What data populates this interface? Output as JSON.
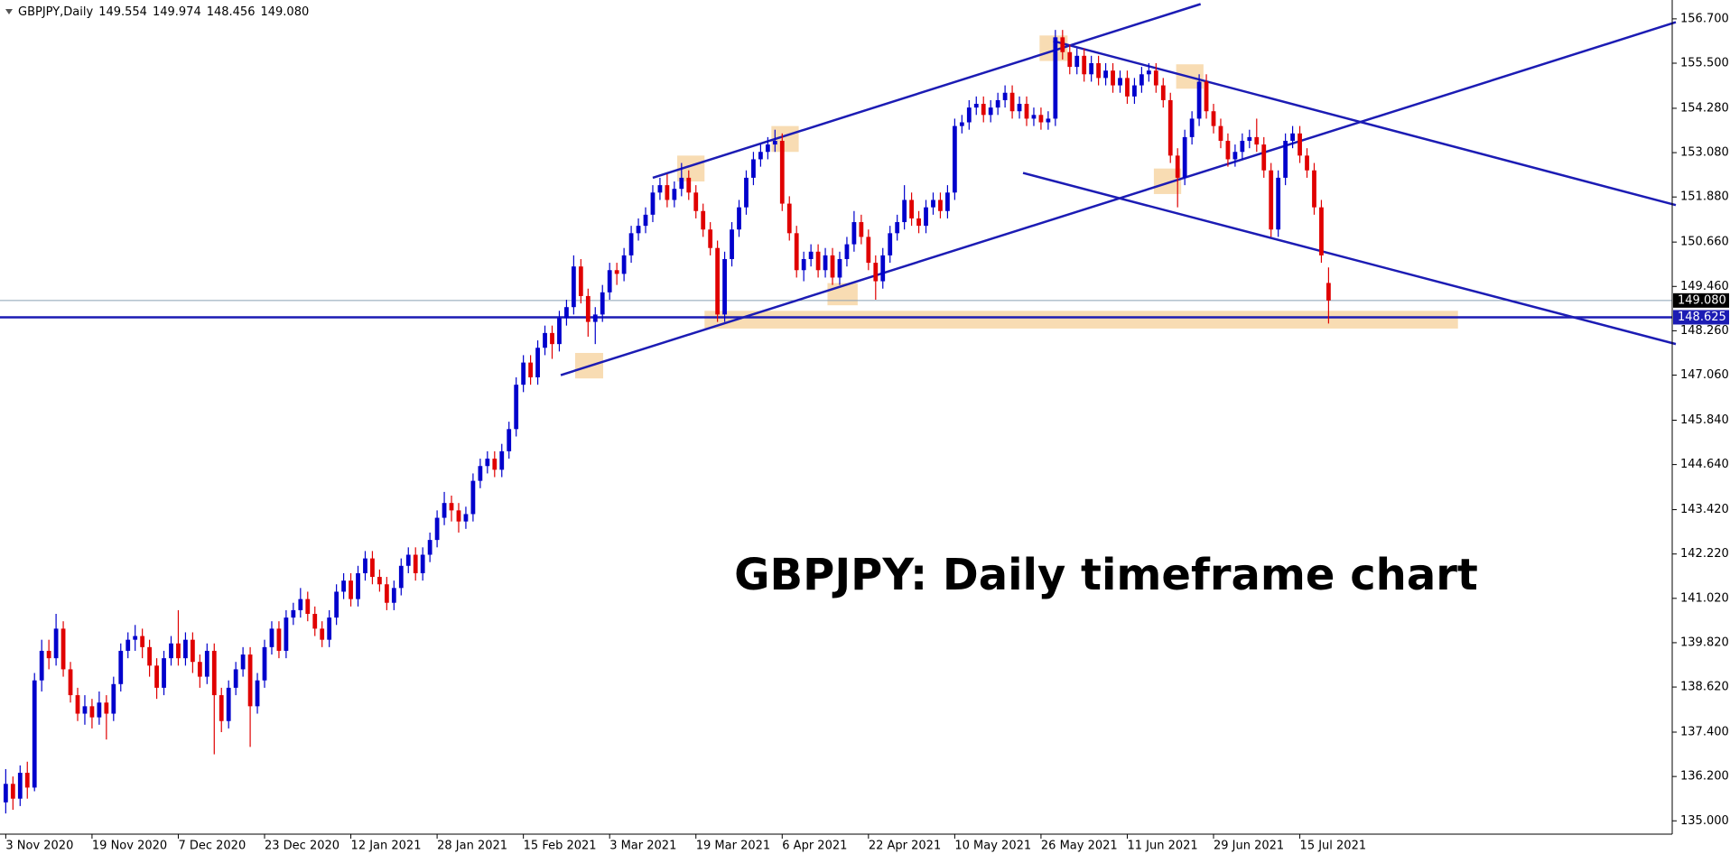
{
  "chart_data": {
    "type": "candlestick",
    "symbol": "GBPJPY,Daily",
    "ohlc_labels": [
      "149.554",
      "149.974",
      "148.456",
      "149.080"
    ],
    "annotation": "GBPJPY: Daily timeframe chart",
    "up_color": "#0000cc",
    "down_color": "#e00000",
    "line_color": "#1c1cb4",
    "zone_color": "#f7d6a6",
    "grid": false,
    "ylim": [
      134.64,
      157.21
    ],
    "xlim": [
      -0.8,
      231.8
    ],
    "yticks": [
      {
        "value": 135,
        "label": "135.000"
      },
      {
        "value": 136.2,
        "label": "136.200"
      },
      {
        "value": 137.4,
        "label": "137.400"
      },
      {
        "value": 138.62,
        "label": "138.620"
      },
      {
        "value": 139.82,
        "label": "139.820"
      },
      {
        "value": 141.02,
        "label": "141.020"
      },
      {
        "value": 142.22,
        "label": "142.220"
      },
      {
        "value": 143.42,
        "label": "143.420"
      },
      {
        "value": 144.64,
        "label": "144.640"
      },
      {
        "value": 145.84,
        "label": "145.840"
      },
      {
        "value": 147.06,
        "label": "147.060"
      },
      {
        "value": 148.26,
        "label": "148.260"
      },
      {
        "value": 149.46,
        "label": "149.460"
      },
      {
        "value": 150.66,
        "label": "150.660"
      },
      {
        "value": 151.88,
        "label": "151.880"
      },
      {
        "value": 153.08,
        "label": "153.080"
      },
      {
        "value": 154.28,
        "label": "154.280"
      },
      {
        "value": 155.5,
        "label": "155.500"
      },
      {
        "value": 156.7,
        "label": "156.700"
      }
    ],
    "price_line": {
      "value": 149.08,
      "label": "149.080"
    },
    "level": {
      "value": 148.625,
      "label": "148.625"
    },
    "categories": [
      "3 Nov 2020",
      null,
      null,
      null,
      null,
      null,
      null,
      null,
      null,
      null,
      null,
      null,
      "19 Nov 2020",
      null,
      null,
      null,
      null,
      null,
      null,
      null,
      null,
      null,
      null,
      null,
      "7 Dec 2020",
      null,
      null,
      null,
      null,
      null,
      null,
      null,
      null,
      null,
      null,
      null,
      "23 Dec 2020",
      null,
      null,
      null,
      null,
      null,
      null,
      null,
      null,
      null,
      null,
      null,
      "12 Jan 2021",
      null,
      null,
      null,
      null,
      null,
      null,
      null,
      null,
      null,
      null,
      null,
      "28 Jan 2021",
      null,
      null,
      null,
      null,
      null,
      null,
      null,
      null,
      null,
      null,
      null,
      "15 Feb 2021",
      null,
      null,
      null,
      null,
      null,
      null,
      null,
      null,
      null,
      null,
      null,
      "3 Mar 2021",
      null,
      null,
      null,
      null,
      null,
      null,
      null,
      null,
      null,
      null,
      null,
      "19 Mar 2021",
      null,
      null,
      null,
      null,
      null,
      null,
      null,
      null,
      null,
      null,
      null,
      "6 Apr 2021",
      null,
      null,
      null,
      null,
      null,
      null,
      null,
      null,
      null,
      null,
      null,
      "22 Apr 2021",
      null,
      null,
      null,
      null,
      null,
      null,
      null,
      null,
      null,
      null,
      null,
      "10 May 2021",
      null,
      null,
      null,
      null,
      null,
      null,
      null,
      null,
      null,
      null,
      null,
      "26 May 2021",
      null,
      null,
      null,
      null,
      null,
      null,
      null,
      null,
      null,
      null,
      null,
      "11 Jun 2021",
      null,
      null,
      null,
      null,
      null,
      null,
      null,
      null,
      null,
      null,
      null,
      "29 Jun 2021",
      null,
      null,
      null,
      null,
      null,
      null,
      null,
      null,
      null,
      null,
      null,
      "15 Jul 2021",
      null,
      null,
      null,
      null
    ],
    "ohlc": [
      [
        135.5,
        136.4,
        135.2,
        136.0
      ],
      [
        136.0,
        136.2,
        135.3,
        135.6
      ],
      [
        135.6,
        136.5,
        135.4,
        136.3
      ],
      [
        136.3,
        136.6,
        135.6,
        135.9
      ],
      [
        135.9,
        139.0,
        135.8,
        138.8
      ],
      [
        138.8,
        139.9,
        138.5,
        139.6
      ],
      [
        139.6,
        139.9,
        139.1,
        139.4
      ],
      [
        139.4,
        140.6,
        139.2,
        140.2
      ],
      [
        140.2,
        140.4,
        138.9,
        139.1
      ],
      [
        139.1,
        139.3,
        138.2,
        138.4
      ],
      [
        138.4,
        138.6,
        137.7,
        137.9
      ],
      [
        137.9,
        138.4,
        137.6,
        138.1
      ],
      [
        138.1,
        138.3,
        137.5,
        137.8
      ],
      [
        137.8,
        138.5,
        137.6,
        138.2
      ],
      [
        138.2,
        138.4,
        137.2,
        137.9
      ],
      [
        137.9,
        138.9,
        137.7,
        138.7
      ],
      [
        138.7,
        139.8,
        138.5,
        139.6
      ],
      [
        139.6,
        140.1,
        139.4,
        139.9
      ],
      [
        139.9,
        140.3,
        139.6,
        140.0
      ],
      [
        140.0,
        140.2,
        139.4,
        139.7
      ],
      [
        139.7,
        139.9,
        138.9,
        139.2
      ],
      [
        139.2,
        139.4,
        138.3,
        138.6
      ],
      [
        138.6,
        139.6,
        138.4,
        139.4
      ],
      [
        139.4,
        140.0,
        139.2,
        139.8
      ],
      [
        139.8,
        140.7,
        139.2,
        139.4
      ],
      [
        139.4,
        140.1,
        139.2,
        139.9
      ],
      [
        139.9,
        140.1,
        139.0,
        139.3
      ],
      [
        139.3,
        139.5,
        138.6,
        138.9
      ],
      [
        138.9,
        139.8,
        138.7,
        139.6
      ],
      [
        139.6,
        139.8,
        136.8,
        138.4
      ],
      [
        138.4,
        138.6,
        137.4,
        137.7
      ],
      [
        137.7,
        138.8,
        137.5,
        138.6
      ],
      [
        138.6,
        139.3,
        138.4,
        139.1
      ],
      [
        139.1,
        139.7,
        138.9,
        139.5
      ],
      [
        139.5,
        139.7,
        137.0,
        138.1
      ],
      [
        138.1,
        139.0,
        137.9,
        138.8
      ],
      [
        138.8,
        139.9,
        138.6,
        139.7
      ],
      [
        139.7,
        140.4,
        139.5,
        140.2
      ],
      [
        140.2,
        140.4,
        139.4,
        139.6
      ],
      [
        139.6,
        140.7,
        139.4,
        140.5
      ],
      [
        140.5,
        140.9,
        140.3,
        140.7
      ],
      [
        140.7,
        141.3,
        140.5,
        141.0
      ],
      [
        141.0,
        141.2,
        140.4,
        140.6
      ],
      [
        140.6,
        140.8,
        140.0,
        140.2
      ],
      [
        140.2,
        140.4,
        139.7,
        139.9
      ],
      [
        139.9,
        140.7,
        139.7,
        140.5
      ],
      [
        140.5,
        141.4,
        140.3,
        141.2
      ],
      [
        141.2,
        141.7,
        141.0,
        141.5
      ],
      [
        141.5,
        141.7,
        140.8,
        141.0
      ],
      [
        141.0,
        141.9,
        140.8,
        141.7
      ],
      [
        141.7,
        142.3,
        141.5,
        142.1
      ],
      [
        142.1,
        142.3,
        141.4,
        141.6
      ],
      [
        141.6,
        141.8,
        141.2,
        141.4
      ],
      [
        141.4,
        141.6,
        140.7,
        140.9
      ],
      [
        140.9,
        141.5,
        140.7,
        141.3
      ],
      [
        141.3,
        142.1,
        141.1,
        141.9
      ],
      [
        141.9,
        142.4,
        141.7,
        142.2
      ],
      [
        142.2,
        142.4,
        141.5,
        141.7
      ],
      [
        141.7,
        142.4,
        141.5,
        142.2
      ],
      [
        142.2,
        142.8,
        142.0,
        142.6
      ],
      [
        142.6,
        143.4,
        142.4,
        143.2
      ],
      [
        143.2,
        143.9,
        143.0,
        143.6
      ],
      [
        143.6,
        143.8,
        143.1,
        143.4
      ],
      [
        143.4,
        143.6,
        142.8,
        143.1
      ],
      [
        143.1,
        143.5,
        142.9,
        143.3
      ],
      [
        143.3,
        144.4,
        143.1,
        144.2
      ],
      [
        144.2,
        144.8,
        144.0,
        144.6
      ],
      [
        144.6,
        145.0,
        144.4,
        144.8
      ],
      [
        144.8,
        145.0,
        144.3,
        144.5
      ],
      [
        144.5,
        145.2,
        144.3,
        145.0
      ],
      [
        145.0,
        145.8,
        144.8,
        145.6
      ],
      [
        145.6,
        147.0,
        145.4,
        146.8
      ],
      [
        146.8,
        147.6,
        146.6,
        147.4
      ],
      [
        147.4,
        147.6,
        146.8,
        147.0
      ],
      [
        147.0,
        148.0,
        146.8,
        147.8
      ],
      [
        147.8,
        148.4,
        147.6,
        148.2
      ],
      [
        148.2,
        148.4,
        147.5,
        147.9
      ],
      [
        147.9,
        148.8,
        147.7,
        148.6
      ],
      [
        148.6,
        149.1,
        148.4,
        148.9
      ],
      [
        148.9,
        150.3,
        148.7,
        150.0
      ],
      [
        150.0,
        150.2,
        149.0,
        149.2
      ],
      [
        149.2,
        149.4,
        148.1,
        148.5
      ],
      [
        148.5,
        148.9,
        147.9,
        148.7
      ],
      [
        148.7,
        149.5,
        148.5,
        149.3
      ],
      [
        149.3,
        150.1,
        149.1,
        149.9
      ],
      [
        149.9,
        150.1,
        149.5,
        149.8
      ],
      [
        149.8,
        150.5,
        149.6,
        150.3
      ],
      [
        150.3,
        151.1,
        150.1,
        150.9
      ],
      [
        150.9,
        151.3,
        150.7,
        151.1
      ],
      [
        151.1,
        151.6,
        150.9,
        151.4
      ],
      [
        151.4,
        152.2,
        151.2,
        152.0
      ],
      [
        152.0,
        152.4,
        151.8,
        152.2
      ],
      [
        152.2,
        152.5,
        151.6,
        151.8
      ],
      [
        151.8,
        152.3,
        151.6,
        152.1
      ],
      [
        152.1,
        152.8,
        151.9,
        152.4
      ],
      [
        152.4,
        152.6,
        151.8,
        152.0
      ],
      [
        152.0,
        152.2,
        151.3,
        151.5
      ],
      [
        151.5,
        151.7,
        150.8,
        151.0
      ],
      [
        151.0,
        151.2,
        150.3,
        150.5
      ],
      [
        150.5,
        150.7,
        148.5,
        148.7
      ],
      [
        148.7,
        150.4,
        148.5,
        150.2
      ],
      [
        150.2,
        151.2,
        150.0,
        151.0
      ],
      [
        151.0,
        151.8,
        150.8,
        151.6
      ],
      [
        151.6,
        152.6,
        151.4,
        152.4
      ],
      [
        152.4,
        153.1,
        152.2,
        152.9
      ],
      [
        152.9,
        153.3,
        152.7,
        153.1
      ],
      [
        153.1,
        153.5,
        152.9,
        153.3
      ],
      [
        153.3,
        153.7,
        153.1,
        153.4
      ],
      [
        153.4,
        153.6,
        151.5,
        151.7
      ],
      [
        151.7,
        151.9,
        150.7,
        150.9
      ],
      [
        150.9,
        151.1,
        149.7,
        149.9
      ],
      [
        149.9,
        150.4,
        149.6,
        150.2
      ],
      [
        150.2,
        150.6,
        150.0,
        150.4
      ],
      [
        150.4,
        150.6,
        149.7,
        149.9
      ],
      [
        149.9,
        150.5,
        149.7,
        150.3
      ],
      [
        150.3,
        150.5,
        149.5,
        149.7
      ],
      [
        149.7,
        150.4,
        149.5,
        150.2
      ],
      [
        150.2,
        150.8,
        150.0,
        150.6
      ],
      [
        150.6,
        151.5,
        150.4,
        151.2
      ],
      [
        151.2,
        151.4,
        150.6,
        150.8
      ],
      [
        150.8,
        151.0,
        149.9,
        150.1
      ],
      [
        150.1,
        150.3,
        149.1,
        149.6
      ],
      [
        149.6,
        150.5,
        149.4,
        150.3
      ],
      [
        150.3,
        151.1,
        150.1,
        150.9
      ],
      [
        150.9,
        151.4,
        150.7,
        151.2
      ],
      [
        151.2,
        152.2,
        151.0,
        151.8
      ],
      [
        151.8,
        152.0,
        151.1,
        151.3
      ],
      [
        151.3,
        151.5,
        150.9,
        151.1
      ],
      [
        151.1,
        151.8,
        150.9,
        151.6
      ],
      [
        151.6,
        152.0,
        151.4,
        151.8
      ],
      [
        151.8,
        152.0,
        151.3,
        151.5
      ],
      [
        151.5,
        152.2,
        151.3,
        152.0
      ],
      [
        152.0,
        154.0,
        151.8,
        153.8
      ],
      [
        153.8,
        154.1,
        153.6,
        153.9
      ],
      [
        153.9,
        154.5,
        153.7,
        154.3
      ],
      [
        154.3,
        154.6,
        154.1,
        154.4
      ],
      [
        154.4,
        154.6,
        153.9,
        154.1
      ],
      [
        154.1,
        154.5,
        153.9,
        154.3
      ],
      [
        154.3,
        154.7,
        154.1,
        154.5
      ],
      [
        154.5,
        154.9,
        154.3,
        154.7
      ],
      [
        154.7,
        154.9,
        154.0,
        154.2
      ],
      [
        154.2,
        154.6,
        154.0,
        154.4
      ],
      [
        154.4,
        154.6,
        153.8,
        154.0
      ],
      [
        154.0,
        154.3,
        153.8,
        154.1
      ],
      [
        154.1,
        154.3,
        153.7,
        153.9
      ],
      [
        153.9,
        154.2,
        153.7,
        154.0
      ],
      [
        154.0,
        156.4,
        153.8,
        156.2
      ],
      [
        156.2,
        156.4,
        155.6,
        155.8
      ],
      [
        155.8,
        156.0,
        155.2,
        155.4
      ],
      [
        155.4,
        155.9,
        155.2,
        155.7
      ],
      [
        155.7,
        155.9,
        155.0,
        155.2
      ],
      [
        155.2,
        155.7,
        155.0,
        155.5
      ],
      [
        155.5,
        155.7,
        154.9,
        155.1
      ],
      [
        155.1,
        155.5,
        154.9,
        155.3
      ],
      [
        155.3,
        155.5,
        154.7,
        154.9
      ],
      [
        154.9,
        155.3,
        154.7,
        155.1
      ],
      [
        155.1,
        155.3,
        154.4,
        154.6
      ],
      [
        154.6,
        155.1,
        154.4,
        154.9
      ],
      [
        154.9,
        155.4,
        154.7,
        155.2
      ],
      [
        155.2,
        155.5,
        155.0,
        155.3
      ],
      [
        155.3,
        155.5,
        154.7,
        154.9
      ],
      [
        154.9,
        155.1,
        154.3,
        154.5
      ],
      [
        154.5,
        154.7,
        152.8,
        153.0
      ],
      [
        153.0,
        153.2,
        151.6,
        152.4
      ],
      [
        152.4,
        153.7,
        152.2,
        153.5
      ],
      [
        153.5,
        154.2,
        153.3,
        154.0
      ],
      [
        154.0,
        155.2,
        153.8,
        155.0
      ],
      [
        155.0,
        155.2,
        154.0,
        154.2
      ],
      [
        154.2,
        154.4,
        153.6,
        153.8
      ],
      [
        153.8,
        154.0,
        153.2,
        153.4
      ],
      [
        153.4,
        153.6,
        152.7,
        152.9
      ],
      [
        152.9,
        153.3,
        152.7,
        153.1
      ],
      [
        153.1,
        153.6,
        152.9,
        153.4
      ],
      [
        153.4,
        153.7,
        153.2,
        153.5
      ],
      [
        153.5,
        154.0,
        153.1,
        153.3
      ],
      [
        153.3,
        153.5,
        152.4,
        152.6
      ],
      [
        152.6,
        152.8,
        150.8,
        151.0
      ],
      [
        151.0,
        152.6,
        150.8,
        152.4
      ],
      [
        152.4,
        153.6,
        152.2,
        153.4
      ],
      [
        153.4,
        153.8,
        153.2,
        153.6
      ],
      [
        153.6,
        153.8,
        152.8,
        153.0
      ],
      [
        153.0,
        153.2,
        152.4,
        152.6
      ],
      [
        152.6,
        152.8,
        151.4,
        151.6
      ],
      [
        151.6,
        151.8,
        150.1,
        150.3
      ],
      [
        149.554,
        149.974,
        148.456,
        149.08
      ]
    ],
    "trendlines": [
      [
        [
          90,
          152.4
        ],
        [
          166.2,
          157.1
        ]
      ],
      [
        [
          77.2,
          147.06
        ],
        [
          232.3,
          156.61
        ]
      ],
      [
        [
          145.7,
          156.1
        ],
        [
          232.3,
          151.66
        ]
      ],
      [
        [
          141.5,
          152.53
        ],
        [
          232.3,
          147.9
        ]
      ]
    ],
    "zones": [
      [
        93.4,
        97.2,
        152.3,
        153.0
      ],
      [
        106.5,
        110.3,
        153.1,
        153.8
      ],
      [
        143.8,
        147.7,
        155.56,
        156.25
      ],
      [
        162.8,
        166.6,
        154.81,
        155.47
      ],
      [
        159.7,
        163.5,
        151.96,
        152.65
      ],
      [
        114.3,
        118.5,
        148.95,
        149.55
      ],
      [
        79.2,
        83.1,
        146.97,
        147.66
      ],
      [
        97.2,
        202,
        148.32,
        148.8
      ]
    ]
  }
}
